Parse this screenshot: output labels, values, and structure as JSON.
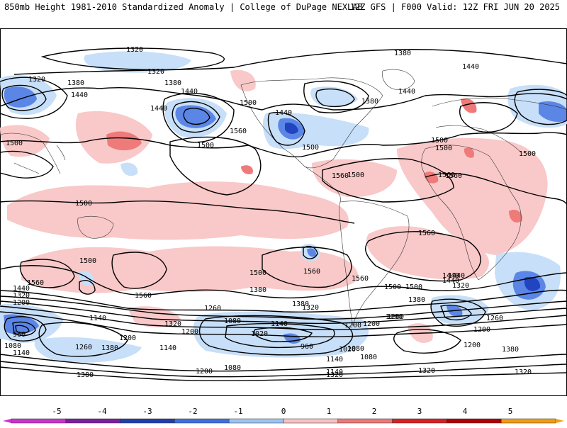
{
  "header": {
    "left": "850mb Height 1981-2010 Standardized Anomaly | College of DuPage NEXLAB",
    "right": "12Z GFS | F000 Valid: 12Z FRI JUN 20 2025"
  },
  "map": {
    "contour_labels": [
      "1320",
      "1320",
      "1380",
      "1380",
      "1320",
      "1440",
      "1440",
      "1500",
      "1380",
      "1500",
      "1440",
      "1440",
      "1500",
      "1440",
      "1560",
      "1560",
      "1500",
      "1380",
      "1440",
      "1500",
      "1500",
      "1500",
      "1560",
      "1560",
      "1500",
      "1560",
      "1560",
      "1560",
      "1500",
      "1560",
      "1500",
      "1500",
      "1560",
      "1500",
      "1440",
      "1380",
      "1440",
      "1320",
      "1200",
      "1260",
      "1320",
      "1200",
      "1140",
      "1080",
      "1020",
      "960",
      "1080",
      "1140",
      "1260",
      "1380",
      "1200",
      "1140",
      "1140",
      "1200",
      "1260",
      "1080",
      "1200",
      "1320",
      "1380",
      "1320",
      "1440",
      "1500",
      "1380",
      "1320",
      "1260",
      "1200",
      "1380",
      "1200",
      "1320",
      "1440",
      "1380",
      "960",
      "1080",
      "1140",
      "1320",
      "1260",
      "1200",
      "1140",
      "1080",
      "1020"
    ],
    "colors": {
      "anom_pos_1": "#f9c8c8",
      "anom_pos_2": "#ef7a7a",
      "anom_neg_1": "#c7dff8",
      "anom_neg_2": "#5b86e6",
      "anom_neg_3": "#2244c0",
      "land_outline": "#333333",
      "contour": "#000000"
    }
  },
  "legend": {
    "ticks": [
      "-5",
      "-4",
      "-3",
      "-2",
      "-1",
      "0",
      "1",
      "2",
      "3",
      "4",
      "5"
    ],
    "colors": [
      "#cc33cc",
      "#7a1fa2",
      "#1f3fb0",
      "#3f6fe0",
      "#9cc3f2",
      "#ffffff",
      "#f7c2c2",
      "#ee7777",
      "#d92020",
      "#b00000",
      "#f39c12"
    ]
  }
}
